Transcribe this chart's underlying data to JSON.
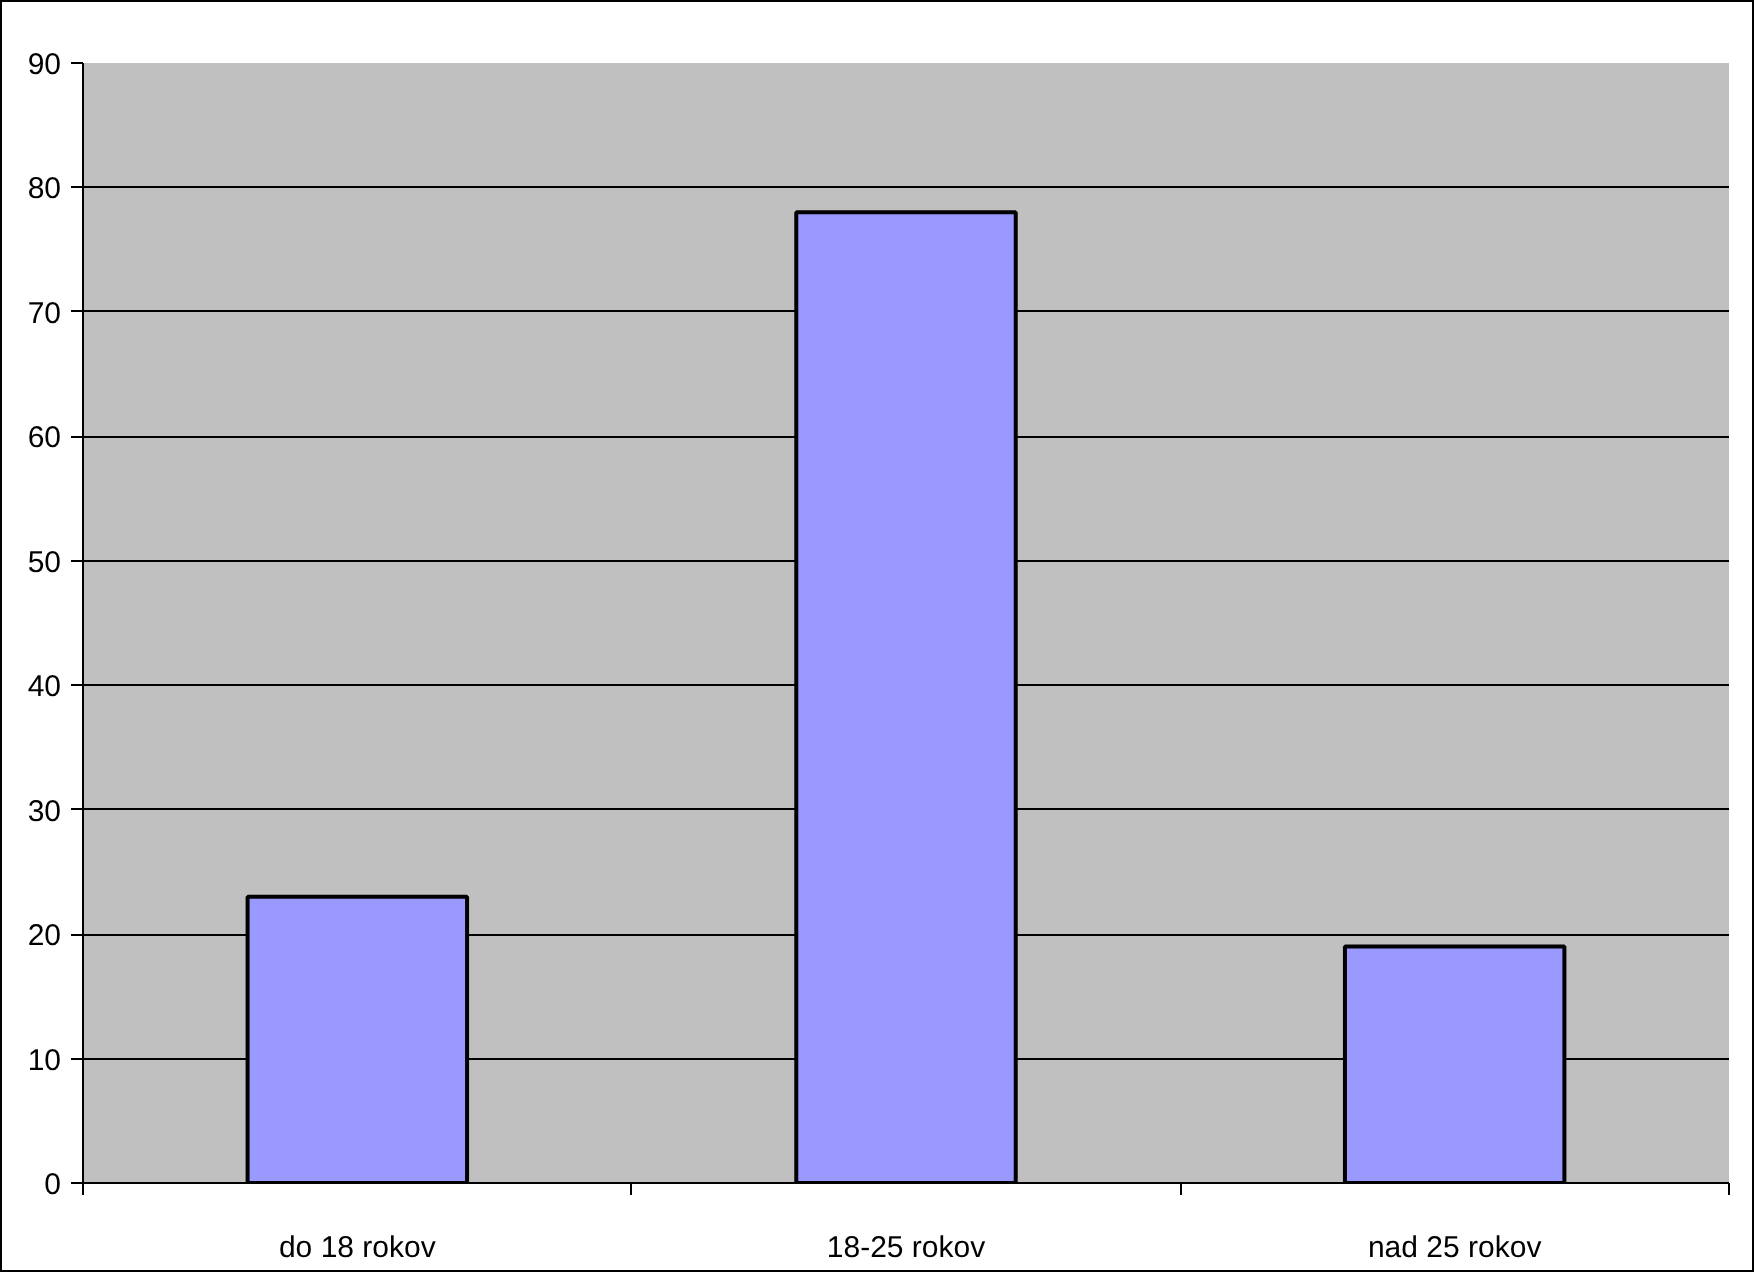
{
  "chart_data": {
    "type": "bar",
    "categories": [
      "do 18 rokov",
      "18-25 rokov",
      "nad 25 rokov"
    ],
    "values": [
      23,
      78,
      19
    ],
    "color": "#9999ff",
    "ylim": [
      0,
      90
    ],
    "yticks": [
      0,
      10,
      20,
      30,
      40,
      50,
      60,
      70,
      80,
      90
    ],
    "grid": "y"
  }
}
